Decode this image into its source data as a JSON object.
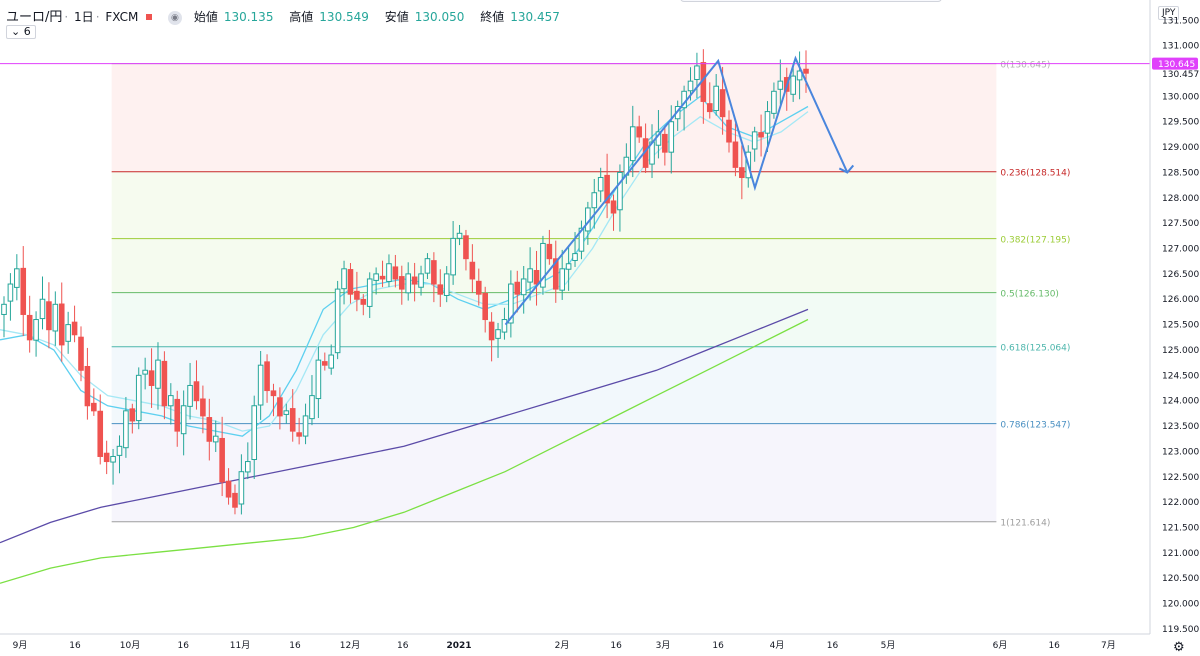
{
  "header": {
    "symbol": "ユーロ/円",
    "interval": "1日",
    "broker": "FXCM",
    "ohlc": [
      {
        "label": "始値",
        "value": "130.135"
      },
      {
        "label": "高値",
        "value": "130.549"
      },
      {
        "label": "安値",
        "value": "130.050"
      },
      {
        "label": "終値",
        "value": "130.457"
      }
    ],
    "indicator_toggle": "6",
    "currency": "JPY"
  },
  "colors": {
    "up": "#26a69a",
    "down": "#ef5350",
    "ma_short": "#5dd0f0",
    "ma_mid": "#a5e8f5",
    "ma_long": "#5b4ba8",
    "ma_longer": "#7be043",
    "pattern": "#4a86dd",
    "price_line": "#e040fb",
    "fib_0": "#b0b0b0",
    "fib_236": "#c62828",
    "fib_382": "#9ccc37",
    "fib_5": "#66bb6a",
    "fib_618": "#4db6ac",
    "fib_786": "#4a90c2",
    "fib_1": "#9e9e9e"
  },
  "chart_data": {
    "type": "candlestick",
    "title": "ユーロ/円 · 1日 · FXCM",
    "ylim": [
      119.4,
      131.9
    ],
    "y_ticks": [
      "131.500",
      "131.000",
      "130.500",
      "130.000",
      "129.500",
      "129.000",
      "128.500",
      "128.000",
      "127.500",
      "127.000",
      "126.500",
      "126.000",
      "125.500",
      "125.000",
      "124.500",
      "124.000",
      "123.500",
      "123.000",
      "122.500",
      "122.000",
      "121.500",
      "121.000",
      "120.500",
      "120.000",
      "119.500"
    ],
    "x_tick_labels": [
      "9月",
      "16",
      "10月",
      "16",
      "11月",
      "16",
      "12月",
      "16",
      "2021",
      "2月",
      "16",
      "3月",
      "16",
      "4月",
      "16",
      "5月",
      "6月",
      "16",
      "7月"
    ],
    "last_price": {
      "value": 130.645,
      "label": "130.645"
    },
    "close_price_label": "130.457",
    "fibonacci_retracement": [
      {
        "level": "0",
        "price": 130.645,
        "label": "0(130.645)"
      },
      {
        "level": "0.236",
        "price": 128.514,
        "label": "0.236(128.514)"
      },
      {
        "level": "0.382",
        "price": 127.195,
        "label": "0.382(127.195)"
      },
      {
        "level": "0.5",
        "price": 126.13,
        "label": "0.5(126.130)"
      },
      {
        "level": "0.618",
        "price": 125.064,
        "label": "0.618(125.064)"
      },
      {
        "level": "0.786",
        "price": 123.547,
        "label": "0.786(123.547)"
      },
      {
        "level": "1",
        "price": 121.614,
        "label": "1(121.614)"
      }
    ],
    "candle_closes": [
      125.9,
      126.3,
      126.6,
      125.7,
      125.2,
      125.6,
      126.0,
      125.4,
      125.9,
      125.1,
      125.5,
      125.3,
      124.6,
      123.9,
      123.8,
      122.9,
      122.8,
      122.9,
      123.1,
      123.8,
      123.6,
      124.5,
      124.6,
      124.3,
      124.8,
      123.9,
      124.1,
      123.4,
      123.9,
      124.3,
      124.0,
      123.7,
      123.2,
      123.3,
      122.4,
      122.1,
      121.9,
      122.6,
      122.8,
      123.9,
      124.7,
      124.2,
      124.1,
      123.7,
      123.8,
      123.4,
      123.3,
      123.7,
      124.1,
      124.8,
      124.7,
      124.9,
      126.2,
      126.6,
      126.1,
      126.0,
      125.9,
      126.4,
      126.5,
      126.4,
      126.7,
      126.4,
      126.2,
      126.5,
      126.3,
      126.5,
      126.8,
      126.3,
      126.1,
      126.5,
      127.2,
      127.3,
      126.8,
      126.4,
      126.1,
      125.6,
      125.2,
      125.4,
      125.6,
      126.3,
      126.1,
      126.4,
      126.6,
      126.3,
      127.1,
      126.8,
      126.2,
      126.6,
      126.7,
      126.9,
      127.4,
      127.8,
      128.1,
      128.4,
      127.9,
      127.7,
      128.5,
      128.8,
      129.4,
      129.2,
      128.6,
      129.1,
      129.3,
      128.9,
      129.5,
      129.8,
      130.1,
      130.3,
      130.6,
      129.9,
      129.7,
      130.2,
      129.6,
      129.1,
      128.6,
      128.4,
      128.9,
      129.3,
      129.2,
      129.7,
      130.1,
      130.3,
      130.1,
      130.4,
      130.5,
      130.457
    ],
    "pattern_points": [
      {
        "date": "2021-01-15",
        "price": 125.5
      },
      {
        "date": "2021-03-16",
        "price": 130.7
      },
      {
        "date": "2021-03-26",
        "price": 128.2
      },
      {
        "date": "2021-04-06",
        "price": 130.75
      },
      {
        "date": "2021-04-20",
        "price": 128.5
      }
    ],
    "moving_averages": [
      {
        "values": [
          125.2,
          125.3,
          125.0,
          124.2,
          123.9,
          123.8,
          123.7,
          123.5,
          123.4,
          123.3,
          123.7,
          124.6,
          125.8,
          126.2,
          126.3,
          126.4,
          126.3,
          126.0,
          125.8,
          126.0,
          126.3,
          126.6,
          127.4,
          128.3,
          129.1,
          129.6,
          130.0,
          129.4,
          129.2,
          129.5,
          129.8
        ]
      },
      {
        "values": [
          125.4,
          125.3,
          125.1,
          124.5,
          124.1,
          124.0,
          123.9,
          123.7,
          123.6,
          123.4,
          123.5,
          124.2,
          125.3,
          125.9,
          126.2,
          126.3,
          126.3,
          126.1,
          125.9,
          125.9,
          126.1,
          126.3,
          127.0,
          127.9,
          128.7,
          129.2,
          129.6,
          129.3,
          129.1,
          129.3,
          129.7
        ]
      },
      {
        "values": [
          121.2,
          121.6,
          121.9,
          122.1,
          122.3,
          122.5,
          122.7,
          122.9,
          123.1,
          123.4,
          123.7,
          124.0,
          124.3,
          124.6,
          125.0,
          125.4,
          125.8
        ]
      },
      {
        "values": [
          120.4,
          120.7,
          120.9,
          121.0,
          121.1,
          121.2,
          121.3,
          121.5,
          121.8,
          122.2,
          122.6,
          123.1,
          123.6,
          124.1,
          124.6,
          125.1,
          125.6
        ]
      }
    ]
  }
}
